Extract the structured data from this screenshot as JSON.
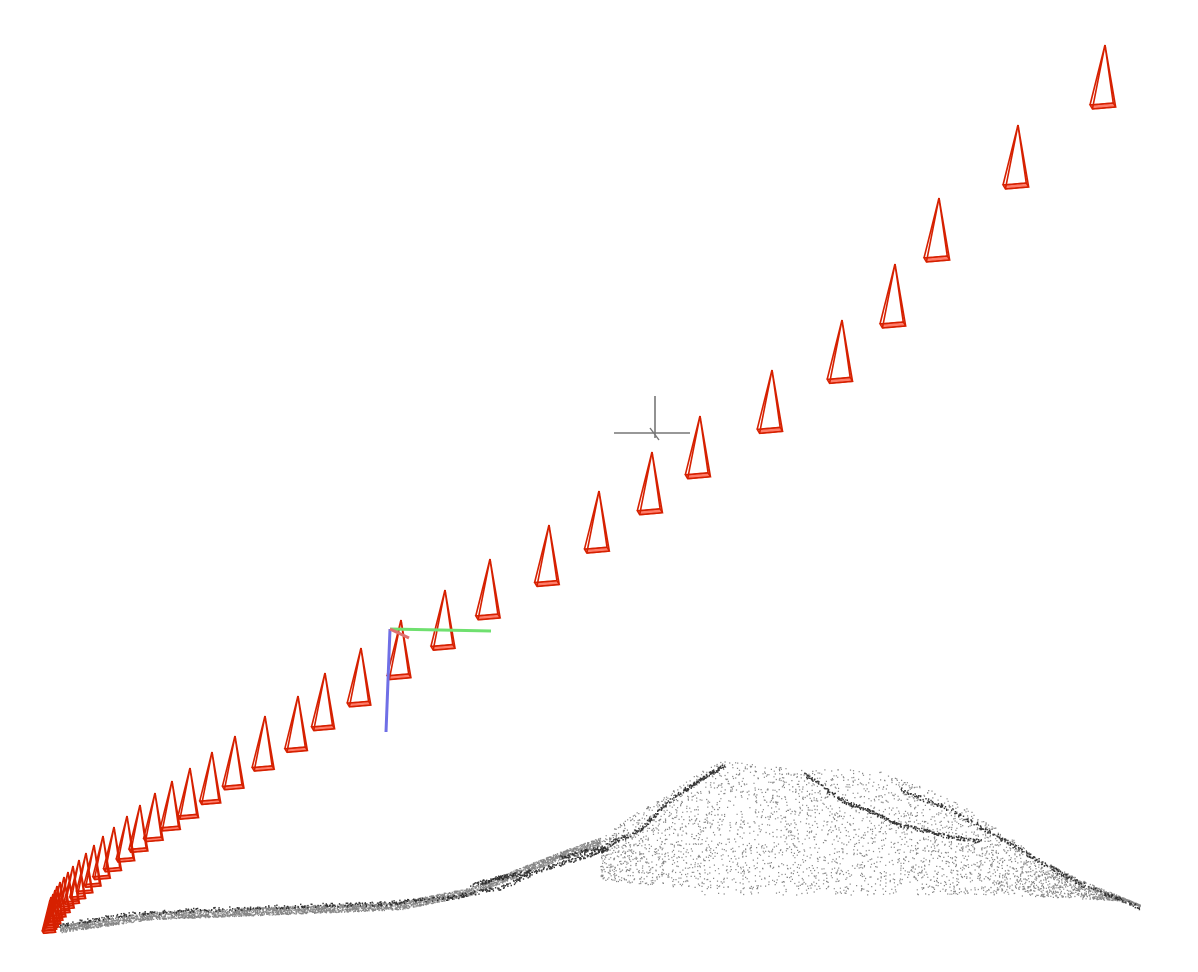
{
  "viewer": {
    "background": "#ffffff",
    "camera_frustum_color": "#d62000",
    "camera_frustum_fill": "#ff6650",
    "point_cloud_color": "#222222",
    "center_marker_color": "#777777",
    "axis_colors": {
      "x": "#e07070",
      "y": "#6fe06f",
      "z": "#6f6fe6"
    },
    "camera_count": 38,
    "icons": {
      "camera": "camera-frustum-icon",
      "center": "crosshair-icon",
      "axes": "axes-gizmo-icon"
    }
  }
}
